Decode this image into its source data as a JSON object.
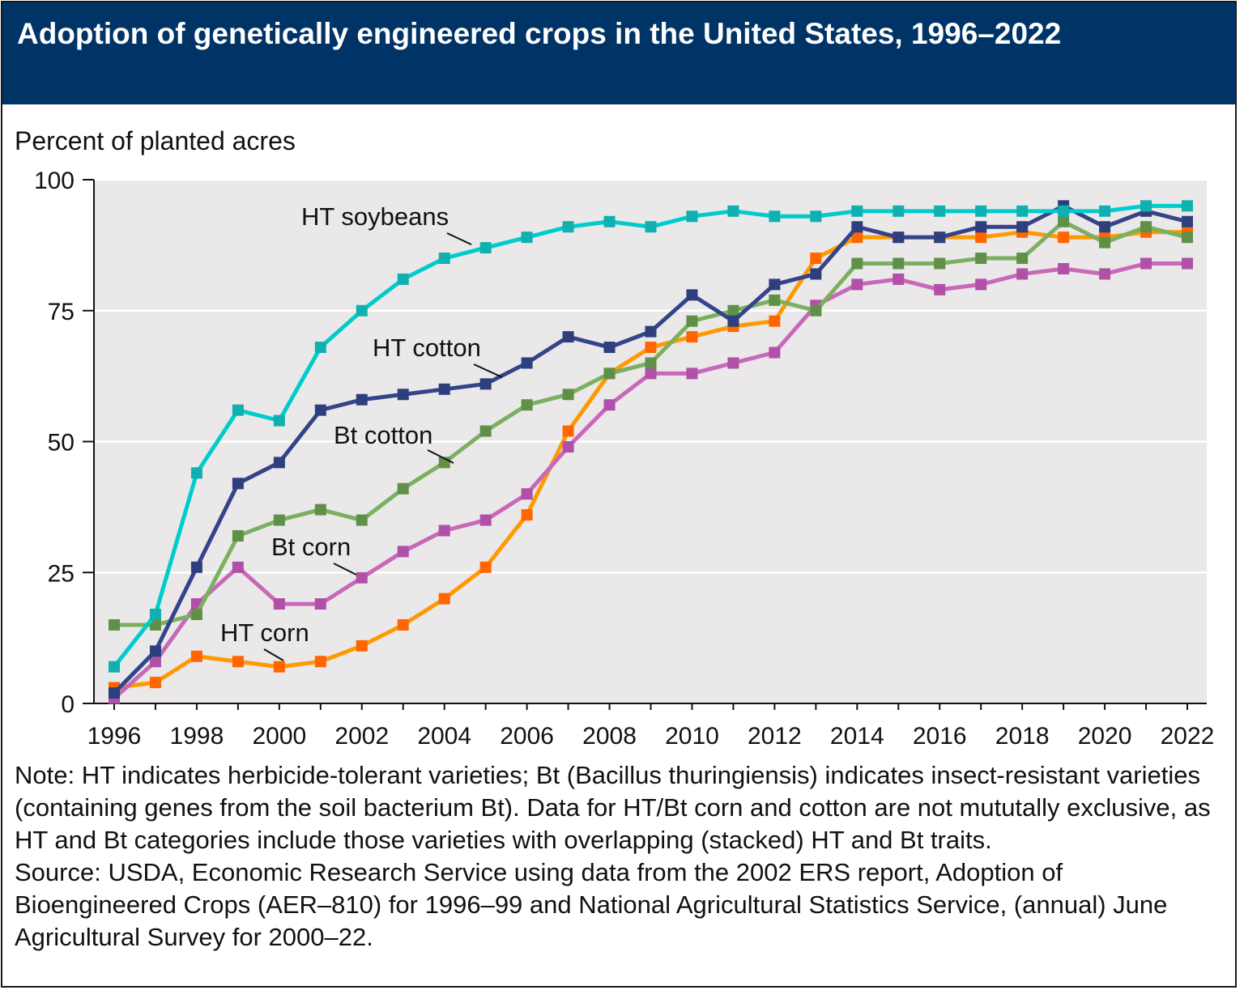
{
  "header": {
    "title": "Adoption of genetically engineered crops in the United States, 1996–2022"
  },
  "chart_data": {
    "type": "line",
    "title": "Adoption of genetically engineered crops in the United States, 1996–2022",
    "ylabel": "Percent of planted acres",
    "xlabel": "",
    "ylim": [
      0,
      100
    ],
    "xlim": [
      1996,
      2022
    ],
    "yticks": [
      0,
      25,
      50,
      75,
      100
    ],
    "xticks": [
      1996,
      1998,
      2000,
      2002,
      2004,
      2006,
      2008,
      2010,
      2012,
      2014,
      2016,
      2018,
      2020,
      2022
    ],
    "grid": "horizontal",
    "background": "#eae8e9",
    "x": [
      1996,
      1997,
      1998,
      1999,
      2000,
      2001,
      2002,
      2003,
      2004,
      2005,
      2006,
      2007,
      2008,
      2009,
      2010,
      2011,
      2012,
      2013,
      2014,
      2015,
      2016,
      2017,
      2018,
      2019,
      2020,
      2021,
      2022
    ],
    "series": [
      {
        "name": "HT corn",
        "line_color": "#ff9900",
        "marker_color": "#ff6600",
        "values": [
          3,
          4,
          9,
          8,
          7,
          8,
          11,
          15,
          20,
          26,
          36,
          52,
          63,
          68,
          70,
          72,
          73,
          85,
          89,
          89,
          89,
          89,
          90,
          89,
          89,
          90,
          90
        ]
      },
      {
        "name": "Bt corn",
        "line_color": "#c868b8",
        "marker_color": "#b050a8",
        "values": [
          1,
          8,
          19,
          26,
          19,
          19,
          24,
          29,
          33,
          35,
          40,
          49,
          57,
          63,
          63,
          65,
          67,
          76,
          80,
          81,
          79,
          80,
          82,
          83,
          82,
          84,
          84
        ]
      },
      {
        "name": "Bt cotton",
        "line_color": "#7ab060",
        "marker_color": "#609048",
        "values": [
          15,
          15,
          17,
          32,
          35,
          37,
          35,
          41,
          46,
          52,
          57,
          59,
          63,
          65,
          73,
          75,
          77,
          75,
          84,
          84,
          84,
          85,
          85,
          92,
          88,
          91,
          89
        ]
      },
      {
        "name": "HT cotton",
        "line_color": "#334488",
        "marker_color": "#2e3f7e",
        "values": [
          2,
          10,
          26,
          42,
          46,
          56,
          58,
          59,
          60,
          61,
          65,
          70,
          68,
          71,
          78,
          73,
          80,
          82,
          91,
          89,
          89,
          91,
          91,
          95,
          91,
          94,
          92
        ]
      },
      {
        "name": "HT soybeans",
        "line_color": "#00cccc",
        "marker_color": "#10b0b0",
        "values": [
          7,
          17,
          44,
          56,
          54,
          68,
          75,
          81,
          85,
          87,
          89,
          91,
          92,
          91,
          93,
          94,
          93,
          93,
          94,
          94,
          94,
          94,
          94,
          94,
          94,
          95,
          95
        ]
      }
    ]
  },
  "notes": {
    "note": "Note: HT indicates herbicide-tolerant varieties; Bt (Bacillus thuringiensis) indicates insect-resistant varieties (containing genes from the soil bacterium Bt). Data for HT/Bt corn and cotton are not mututally exclusive, as HT and Bt categories include those varieties with overlapping (stacked) HT and Bt traits.",
    "source": "Source: USDA, Economic Research Service using data from the 2002 ERS report, Adoption of Bioengineered Crops (AER–810) for 1996–99 and National Agricultural Statistics Service, (annual) June Agricultural Survey for 2000–22."
  }
}
